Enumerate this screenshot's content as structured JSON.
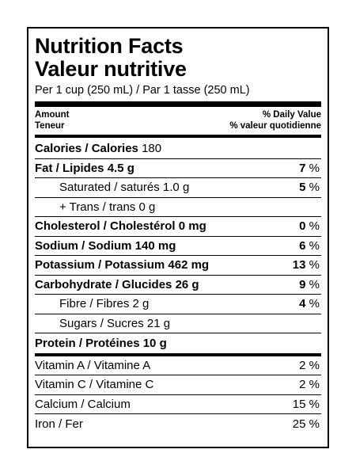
{
  "title_en": "Nutrition Facts",
  "title_fr": "Valeur nutritive",
  "serving": "Per 1 cup (250 mL) / Par 1 tasse (250 mL)",
  "header": {
    "amount_en": "Amount",
    "amount_fr": "Teneur",
    "dv_en": "% Daily Value",
    "dv_fr": "% valeur quotidienne"
  },
  "calories": {
    "label": "Calories / Calories",
    "value": "180"
  },
  "nutrients": [
    {
      "label": "Fat / Lipides",
      "amount": "4.5 g",
      "dv": "7",
      "unit": "%"
    },
    {
      "label": "Saturated / saturés",
      "amount": "1.0 g",
      "dv": "5",
      "unit": "%"
    },
    {
      "label": "+ Trans / trans",
      "amount": "0 g",
      "dv": "",
      "unit": ""
    },
    {
      "label": "Cholesterol / Cholestérol",
      "amount": "0 mg",
      "dv": "0",
      "unit": "%"
    },
    {
      "label": "Sodium / Sodium",
      "amount": "140 mg",
      "dv": "6",
      "unit": "%"
    },
    {
      "label": "Potassium / Potassium",
      "amount": "462 mg",
      "dv": "13",
      "unit": "%"
    },
    {
      "label": "Carbohydrate / Glucides",
      "amount": "26 g",
      "dv": "9",
      "unit": "%"
    },
    {
      "label": "Fibre / Fibres",
      "amount": "2 g",
      "dv": "4",
      "unit": "%"
    },
    {
      "label": "Sugars / Sucres",
      "amount": "21 g",
      "dv": "",
      "unit": ""
    },
    {
      "label": "Protein / Protéines",
      "amount": "10 g",
      "dv": "",
      "unit": ""
    }
  ],
  "vitamins": [
    {
      "label": "Vitamin A / Vitamine A",
      "dv": "2",
      "unit": "%"
    },
    {
      "label": "Vitamin C / Vitamine C",
      "dv": "2",
      "unit": "%"
    },
    {
      "label": "Calcium / Calcium",
      "dv": "15",
      "unit": "%"
    },
    {
      "label": "Iron / Fer",
      "dv": "25",
      "unit": "%"
    }
  ]
}
